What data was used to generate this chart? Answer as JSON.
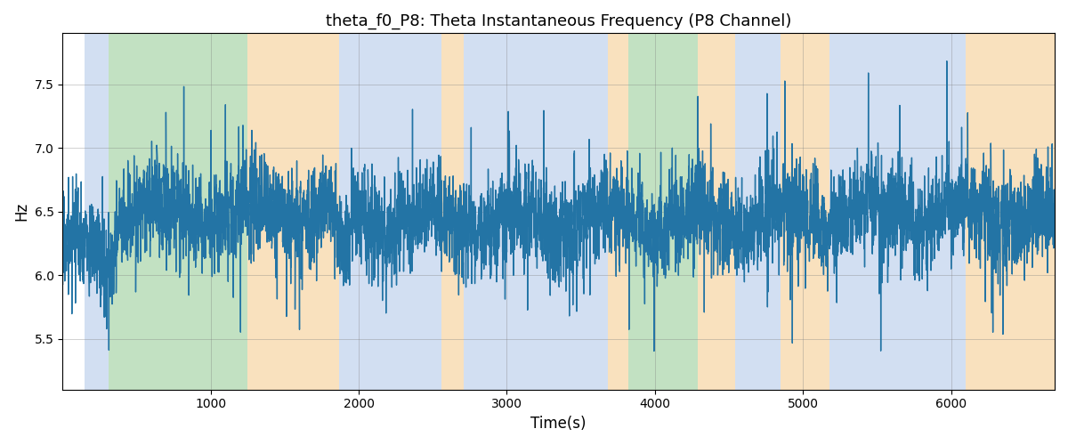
{
  "title": "theta_f0_P8: Theta Instantaneous Frequency (P8 Channel)",
  "xlabel": "Time(s)",
  "ylabel": "Hz",
  "xlim": [
    0,
    6700
  ],
  "ylim": [
    5.1,
    7.9
  ],
  "yticks": [
    5.5,
    6.0,
    6.5,
    7.0,
    7.5
  ],
  "xticks": [
    1000,
    2000,
    3000,
    4000,
    5000,
    6000
  ],
  "line_color": "#2374a5",
  "line_width": 1.0,
  "bg_color": "white",
  "bands": [
    {
      "start": 150,
      "end": 310,
      "color": "#aec6e8",
      "alpha": 0.55
    },
    {
      "start": 310,
      "end": 1250,
      "color": "#90c990",
      "alpha": 0.55
    },
    {
      "start": 1250,
      "end": 1870,
      "color": "#f5c98a",
      "alpha": 0.55
    },
    {
      "start": 1870,
      "end": 2560,
      "color": "#aec6e8",
      "alpha": 0.55
    },
    {
      "start": 2560,
      "end": 2710,
      "color": "#f5c98a",
      "alpha": 0.55
    },
    {
      "start": 2710,
      "end": 3680,
      "color": "#aec6e8",
      "alpha": 0.55
    },
    {
      "start": 3680,
      "end": 3820,
      "color": "#f5c98a",
      "alpha": 0.55
    },
    {
      "start": 3820,
      "end": 4290,
      "color": "#90c990",
      "alpha": 0.55
    },
    {
      "start": 4290,
      "end": 4540,
      "color": "#f5c98a",
      "alpha": 0.55
    },
    {
      "start": 4540,
      "end": 4850,
      "color": "#aec6e8",
      "alpha": 0.55
    },
    {
      "start": 4850,
      "end": 5180,
      "color": "#f5c98a",
      "alpha": 0.55
    },
    {
      "start": 5180,
      "end": 6100,
      "color": "#aec6e8",
      "alpha": 0.55
    },
    {
      "start": 6100,
      "end": 6700,
      "color": "#f5c98a",
      "alpha": 0.55
    }
  ],
  "seed": 17,
  "n_points": 6700,
  "mean_freq": 6.45,
  "noise_std": 0.18,
  "title_fontsize": 13
}
